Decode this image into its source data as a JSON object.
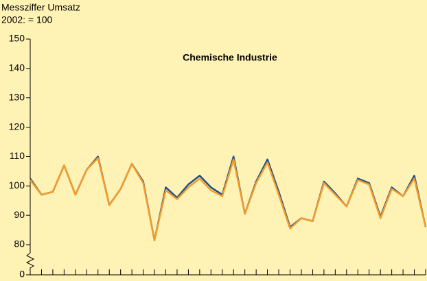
{
  "chart_data": {
    "type": "line",
    "title": "Chemische Industrie",
    "ylabel": [
      "Messziffer Umsatz",
      "2002: = 100"
    ],
    "categories": [
      null,
      null,
      null,
      null,
      null,
      null,
      null,
      null,
      null,
      null,
      null,
      null,
      null,
      null,
      null,
      null,
      null,
      null,
      null,
      null,
      null,
      null,
      null,
      null,
      null,
      null,
      null,
      null,
      null,
      null,
      null,
      null,
      null,
      null,
      null,
      null
    ],
    "series": [
      {
        "color": "#1f4e8c",
        "values": [
          102.5,
          97,
          98,
          107,
          97,
          105.5,
          110,
          93.5,
          99,
          107.5,
          101.5,
          81.5,
          99.5,
          96,
          100.5,
          103.5,
          99.5,
          97,
          110,
          90.5,
          101.5,
          109,
          98,
          86,
          89,
          88,
          101.5,
          97.5,
          93,
          102.5,
          101,
          89.5,
          99.5,
          96.5,
          103.5,
          86
        ]
      },
      {
        "color": "#f39c2b",
        "values": [
          102,
          97,
          98,
          107,
          97,
          105.5,
          109.5,
          93.5,
          99,
          107.5,
          101,
          81.5,
          98.5,
          95.5,
          99.5,
          102.5,
          98.5,
          96.5,
          109,
          90.5,
          101,
          108,
          97,
          85.5,
          89,
          88,
          101,
          97,
          93,
          102,
          100.5,
          89,
          99,
          96.5,
          102.5,
          86
        ]
      }
    ],
    "ylim": [
      0,
      150
    ],
    "yticks": [
      0,
      80,
      90,
      100,
      110,
      120,
      130,
      140,
      150
    ],
    "axis_break": true
  }
}
